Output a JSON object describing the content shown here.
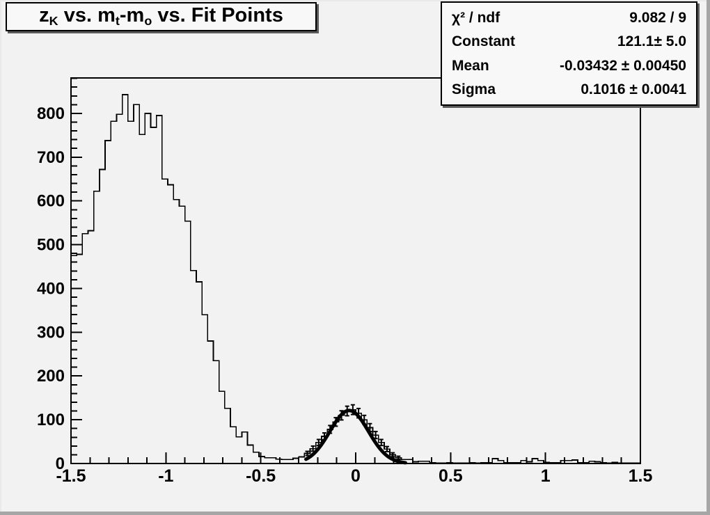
{
  "window": {
    "background_color": "#f2f2f2",
    "edge_color": "#a6a6a6",
    "foreground_color": "#000000"
  },
  "title_box": {
    "segments": [
      [
        "t",
        "z"
      ],
      [
        "sub",
        "K"
      ],
      [
        "t",
        " vs. m"
      ],
      [
        "sub",
        "t"
      ],
      [
        "t",
        "-m"
      ],
      [
        "sub",
        "o"
      ],
      [
        "t",
        " vs. Fit Points"
      ]
    ],
    "plain_text": "zK vs. mt-mo vs. Fit Points"
  },
  "stats_box": {
    "rows": [
      {
        "label": "χ² / ndf",
        "value": "9.082 / 9"
      },
      {
        "label": "Constant",
        "value": "121.1± 5.0"
      },
      {
        "label": "Mean",
        "value": "-0.03432 ± 0.00450"
      },
      {
        "label": "Sigma",
        "value": "0.1016 ± 0.0041"
      }
    ]
  },
  "axes": {
    "x": {
      "min": -1.5,
      "max": 1.5,
      "major_tick_step": 0.5,
      "minor_tick_step": 0.1,
      "tick_labels": [
        {
          "value": -1.5,
          "label": "-1.5"
        },
        {
          "value": -1.0,
          "label": "-1"
        },
        {
          "value": -0.5,
          "label": "-0.5"
        },
        {
          "value": 0.0,
          "label": "0"
        },
        {
          "value": 0.5,
          "label": "0.5"
        },
        {
          "value": 1.0,
          "label": "1"
        },
        {
          "value": 1.5,
          "label": "1.5"
        }
      ]
    },
    "y": {
      "min": 0,
      "max": 881,
      "major_tick_step": 100,
      "minor_tick_step": 20,
      "tick_labels": [
        {
          "value": 0,
          "label": "0"
        },
        {
          "value": 100,
          "label": "100"
        },
        {
          "value": 200,
          "label": "200"
        },
        {
          "value": 300,
          "label": "300"
        },
        {
          "value": 400,
          "label": "400"
        },
        {
          "value": 500,
          "label": "500"
        },
        {
          "value": 600,
          "label": "600"
        },
        {
          "value": 700,
          "label": "700"
        },
        {
          "value": 800,
          "label": "800"
        }
      ]
    }
  },
  "chart_data": {
    "type": "bar",
    "subtype": "step-histogram",
    "title": "zK vs. mt-mo vs. Fit Points",
    "xlabel": "",
    "ylabel": "",
    "xlim": [
      -1.5,
      1.5
    ],
    "ylim": [
      0,
      881
    ],
    "grid": false,
    "legend": false,
    "histogram": {
      "xmin": -1.5,
      "bin_width": 0.03,
      "n_bins": 100,
      "line_color": "#000000",
      "values": [
        475,
        478,
        525,
        532,
        622,
        672,
        738,
        782,
        798,
        843,
        782,
        820,
        752,
        800,
        768,
        795,
        650,
        637,
        603,
        588,
        554,
        441,
        415,
        340,
        280,
        235,
        165,
        126,
        84,
        61,
        72,
        42,
        26,
        16,
        13,
        13,
        10,
        9,
        9,
        12,
        15,
        23,
        34,
        48,
        62,
        78,
        95,
        110,
        120,
        123,
        115,
        100,
        82,
        65,
        48,
        33,
        20,
        13,
        9,
        9,
        4,
        5,
        5,
        2,
        1,
        1,
        2,
        1,
        1,
        1,
        2,
        1,
        2,
        2,
        11,
        7,
        2,
        2,
        2,
        7,
        4,
        11,
        7,
        3,
        2,
        2,
        7,
        7,
        8,
        2,
        2,
        5,
        4,
        2,
        1,
        3,
        1,
        1,
        1,
        1
      ]
    },
    "fit": {
      "model": "gaussian",
      "chi2": 9.082,
      "ndf": 9,
      "constant": 121.1,
      "constant_err": 5.0,
      "mean": -0.03432,
      "mean_err": 0.0045,
      "sigma": 0.1016,
      "sigma_err": 0.0041,
      "draw_range": [
        -0.262,
        0.262
      ],
      "line_color": "#000000",
      "line_width": 5
    },
    "error_bars": {
      "style": "sqrt(N) vertical bars at bin centers in fit region",
      "range": [
        -0.27,
        0.24
      ],
      "min_value": 12
    }
  }
}
